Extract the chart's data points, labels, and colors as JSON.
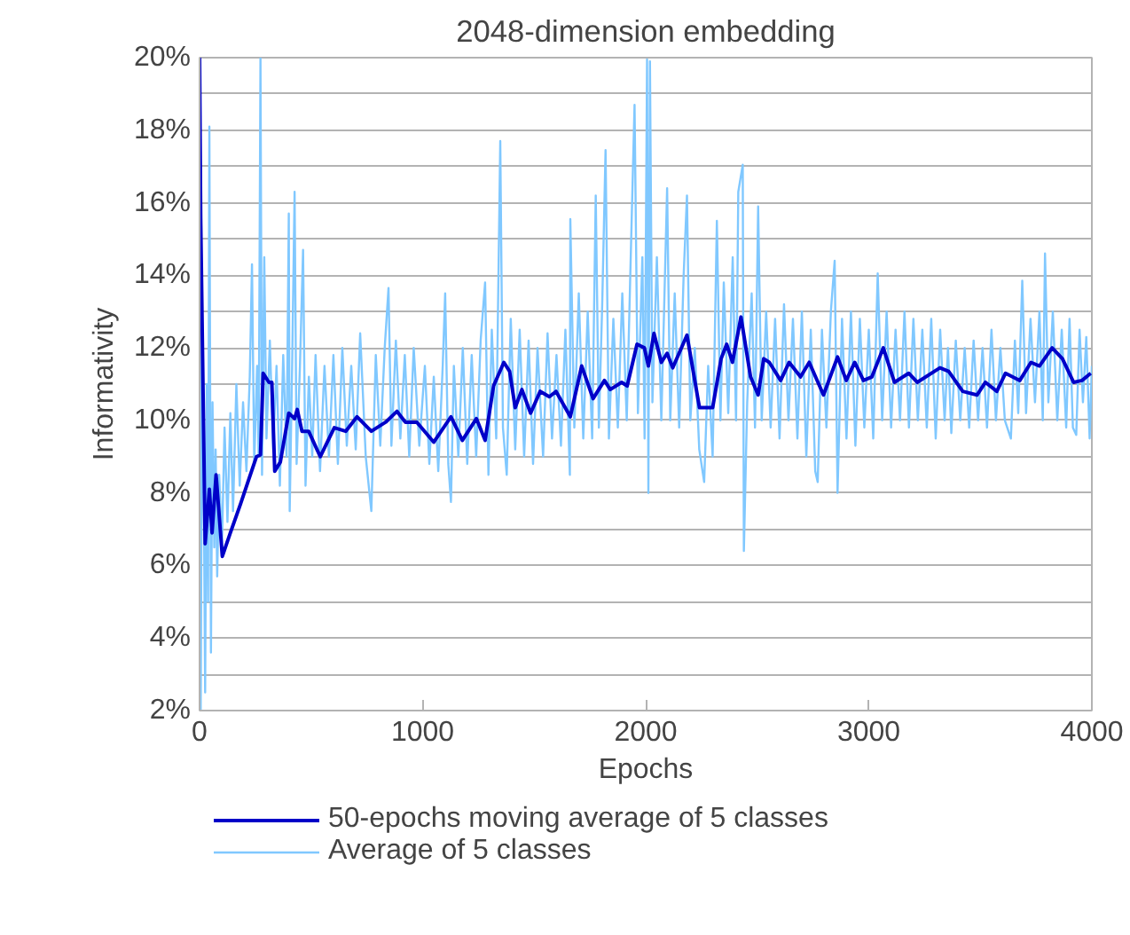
{
  "chart_data": {
    "type": "line",
    "title": "2048-dimension embedding",
    "xlabel": "Epochs",
    "ylabel": "Informativity",
    "xlim": [
      0,
      4000
    ],
    "xticks": [
      0,
      1000,
      2000,
      3000,
      4000
    ],
    "ylim": [
      2,
      20
    ],
    "yticks": [
      {
        "value": 2,
        "label": "2%"
      },
      {
        "value": 3,
        "label": null
      },
      {
        "value": 4,
        "label": "4%"
      },
      {
        "value": 5,
        "label": null
      },
      {
        "value": 6,
        "label": "6%"
      },
      {
        "value": 7,
        "label": null
      },
      {
        "value": 8,
        "label": "8%"
      },
      {
        "value": 9,
        "label": null
      },
      {
        "value": 10,
        "label": "10%"
      },
      {
        "value": 11,
        "label": null
      },
      {
        "value": 12,
        "label": "12%"
      },
      {
        "value": 13,
        "label": null
      },
      {
        "value": 14,
        "label": "14%"
      },
      {
        "value": 15,
        "label": null
      },
      {
        "value": 16,
        "label": "16%"
      },
      {
        "value": 17,
        "label": null
      },
      {
        "value": 18,
        "label": "18%"
      },
      {
        "value": 19,
        "label": null
      },
      {
        "value": 20,
        "label": "20%"
      }
    ],
    "grid": "y",
    "legend": "bottom",
    "marker": "none",
    "line_style": "solid",
    "series": [
      {
        "name": "50-epochs moving average of 5 classes",
        "color": "#0000c8",
        "x": [
          0,
          5,
          25,
          44,
          56,
          74,
          102,
          138,
          184,
          222,
          255,
          273,
          285,
          311,
          324,
          337,
          362,
          400,
          426,
          438,
          459,
          489,
          541,
          604,
          655,
          706,
          770,
          834,
          885,
          923,
          974,
          1050,
          1127,
          1178,
          1241,
          1280,
          1318,
          1364,
          1390,
          1415,
          1445,
          1484,
          1527,
          1568,
          1598,
          1662,
          1713,
          1764,
          1815,
          1841,
          1892,
          1917,
          1961,
          1994,
          2012,
          2037,
          2070,
          2096,
          2121,
          2185,
          2241,
          2300,
          2338,
          2363,
          2389,
          2427,
          2470,
          2504,
          2529,
          2554,
          2605,
          2643,
          2694,
          2733,
          2797,
          2860,
          2899,
          2937,
          2976,
          3014,
          3065,
          3115,
          3179,
          3217,
          3319,
          3358,
          3421,
          3485,
          3523,
          3574,
          3613,
          3677,
          3727,
          3765,
          3822,
          3868,
          3918,
          3956,
          3995
        ],
        "values": [
          20,
          15.6,
          6.6,
          8.1,
          6.9,
          8.5,
          6.25,
          6.9,
          7.7,
          8.4,
          9.0,
          9.05,
          11.3,
          11.05,
          11.05,
          8.6,
          8.85,
          10.2,
          10.05,
          10.3,
          9.7,
          9.7,
          9.0,
          9.8,
          9.7,
          10.1,
          9.7,
          9.95,
          10.25,
          9.95,
          9.95,
          9.4,
          10.1,
          9.45,
          10.05,
          9.45,
          10.95,
          11.6,
          11.35,
          10.35,
          10.85,
          10.2,
          10.8,
          10.65,
          10.8,
          10.1,
          11.5,
          10.6,
          11.1,
          10.85,
          11.05,
          10.95,
          12.1,
          12.0,
          11.5,
          12.4,
          11.6,
          11.85,
          11.45,
          12.35,
          10.35,
          10.35,
          11.7,
          12.1,
          11.6,
          12.85,
          11.2,
          10.7,
          11.7,
          11.6,
          11.1,
          11.6,
          11.2,
          11.6,
          10.7,
          11.75,
          11.1,
          11.6,
          11.1,
          11.2,
          12.0,
          11.05,
          11.3,
          11.05,
          11.45,
          11.35,
          10.8,
          10.7,
          11.05,
          10.8,
          11.3,
          11.1,
          11.6,
          11.5,
          12.0,
          11.7,
          11.05,
          11.1,
          11.3
        ]
      },
      {
        "name": "Average of 5 classes",
        "color": "#80c8ff",
        "x": [
          0,
          5,
          12,
          18,
          25,
          32,
          38,
          44,
          51,
          58,
          66,
          72,
          79,
          88,
          100,
          112,
          125,
          138,
          150,
          165,
          180,
          195,
          210,
          225,
          235,
          245,
          258,
          265,
          273,
          280,
          290,
          300,
          315,
          330,
          345,
          360,
          375,
          390,
          400,
          404,
          415,
          426,
          435,
          450,
          464,
          475,
          490,
          505,
          520,
          540,
          560,
          580,
          600,
          620,
          640,
          660,
          680,
          700,
          720,
          745,
          770,
          790,
          810,
          830,
          847,
          860,
          880,
          900,
          920,
          940,
          960,
          985,
          1010,
          1030,
          1050,
          1070,
          1090,
          1101,
          1115,
          1127,
          1140,
          1160,
          1180,
          1200,
          1220,
          1240,
          1260,
          1280,
          1295,
          1310,
          1330,
          1348,
          1360,
          1377,
          1395,
          1415,
          1435,
          1455,
          1475,
          1495,
          1515,
          1540,
          1560,
          1580,
          1600,
          1620,
          1640,
          1660,
          1662,
          1680,
          1700,
          1720,
          1740,
          1760,
          1776,
          1790,
          1805,
          1820,
          1835,
          1855,
          1875,
          1895,
          1915,
          1930,
          1950,
          1965,
          1985,
          1995,
          2006,
          2012,
          2019,
          2030,
          2050,
          2070,
          2096,
          2110,
          2130,
          2150,
          2170,
          2185,
          2200,
          2220,
          2240,
          2262,
          2280,
          2300,
          2319,
          2335,
          2350,
          2370,
          2390,
          2405,
          2415,
          2435,
          2440,
          2455,
          2475,
          2490,
          2504,
          2520,
          2540,
          2560,
          2580,
          2600,
          2620,
          2640,
          2660,
          2680,
          2700,
          2720,
          2740,
          2760,
          2771,
          2790,
          2810,
          2830,
          2847,
          2860,
          2880,
          2900,
          2920,
          2940,
          2960,
          2980,
          3000,
          3020,
          3040,
          3060,
          3080,
          3100,
          3120,
          3140,
          3160,
          3180,
          3200,
          3220,
          3240,
          3260,
          3280,
          3300,
          3320,
          3340,
          3355,
          3370,
          3390,
          3410,
          3430,
          3450,
          3470,
          3490,
          3510,
          3530,
          3550,
          3570,
          3590,
          3610,
          3637,
          3655,
          3670,
          3688,
          3705,
          3725,
          3745,
          3765,
          3780,
          3790,
          3805,
          3825,
          3845,
          3865,
          3885,
          3900,
          3915,
          3930,
          3945,
          3960,
          3975,
          3990,
          4000
        ],
        "values": [
          15.2,
          2.0,
          12.5,
          9,
          2.5,
          11,
          5,
          18.1,
          3.6,
          10.5,
          6.5,
          9.2,
          5.7,
          8.5,
          6.5,
          9.8,
          7.2,
          10.2,
          7.5,
          11,
          8.2,
          10.5,
          8.6,
          11.2,
          14.3,
          8.8,
          11.5,
          9.0,
          20,
          8.5,
          14.5,
          9.5,
          12.2,
          9.2,
          11.5,
          8.2,
          11.8,
          9.0,
          15.7,
          7.5,
          11.5,
          16.3,
          8.8,
          11.5,
          14.7,
          8.2,
          11.2,
          9.0,
          11.8,
          8.6,
          11.5,
          9.0,
          11.8,
          8.8,
          12.0,
          9.3,
          11.5,
          9.2,
          12.4,
          9.0,
          7.5,
          11.8,
          9.3,
          12.0,
          13.65,
          9.3,
          12.2,
          9.5,
          11.8,
          9.0,
          12.0,
          9.3,
          11.5,
          8.8,
          11.2,
          8.6,
          11.5,
          13.5,
          8.8,
          7.75,
          11.5,
          9.0,
          12.0,
          8.8,
          11.8,
          9.0,
          12.2,
          13.8,
          8.5,
          12.5,
          9.5,
          17.7,
          9.8,
          8.5,
          12.8,
          9.2,
          12.5,
          9.0,
          12.2,
          8.8,
          12.0,
          9.0,
          12.4,
          9.5,
          11.8,
          9.3,
          12.5,
          8.5,
          15.55,
          9.8,
          13.5,
          9.5,
          13.0,
          9.5,
          16.2,
          9.8,
          13.2,
          17.45,
          9.5,
          12.8,
          9.8,
          13.5,
          10.0,
          13.8,
          18.7,
          10.2,
          14.5,
          9.5,
          19.95,
          8.0,
          19.9,
          10.5,
          14.5,
          10.0,
          16.4,
          10.0,
          13.5,
          9.8,
          14.0,
          16.2,
          10.0,
          12.0,
          9.2,
          8.3,
          11.5,
          9.0,
          15.5,
          10.0,
          13.8,
          10.2,
          14.5,
          10.0,
          16.3,
          17.05,
          6.4,
          10.5,
          13.5,
          9.8,
          15.9,
          10.0,
          13.0,
          9.8,
          12.8,
          9.5,
          13.2,
          10.0,
          12.8,
          9.5,
          13.0,
          9.0,
          12.5,
          8.6,
          8.3,
          12.5,
          9.8,
          13.0,
          14.4,
          8.0,
          12.8,
          9.5,
          13.0,
          9.3,
          12.8,
          9.8,
          12.5,
          9.5,
          14.05,
          10.0,
          13.0,
          9.8,
          12.5,
          10.0,
          13.0,
          9.8,
          12.8,
          10.0,
          12.5,
          9.8,
          12.8,
          9.5,
          12.5,
          10.0,
          12.0,
          9.65,
          12.2,
          10.0,
          12.0,
          9.8,
          12.2,
          10.0,
          12.0,
          9.8,
          12.5,
          10.0,
          12.0,
          10.0,
          9.5,
          12.2,
          10.2,
          13.85,
          10.2,
          12.8,
          10.5,
          13.0,
          10.0,
          14.6,
          10.5,
          13.0,
          10.0,
          12.5,
          9.8,
          12.8,
          9.8,
          9.6,
          12.5,
          10.5,
          12.3,
          9.5,
          11.5
        ]
      }
    ]
  }
}
